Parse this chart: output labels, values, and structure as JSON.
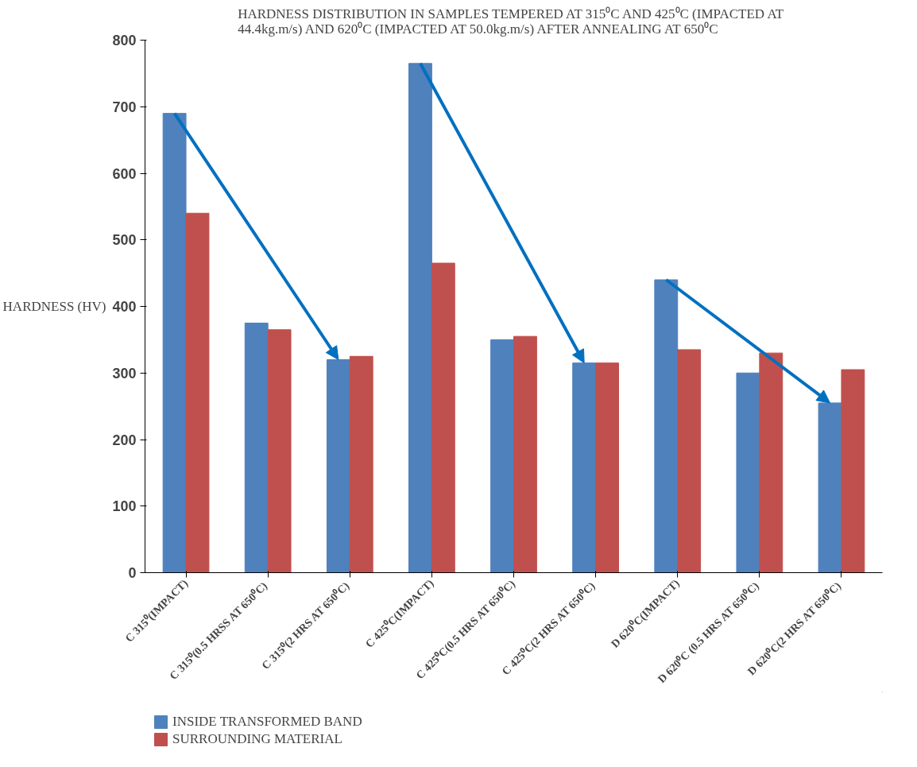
{
  "chart_data": {
    "type": "bar",
    "title": "HARDNESS DISTRIBUTION IN SAMPLES TEMPERED AT  315⁰C AND 425⁰C (IMPACTED AT 44.4kg.m/s) AND 620⁰C (IMPACTED AT 50.0kg.m/s) AFTER ANNEALING AT 650⁰C",
    "ylabel": "HARDNESS (HV)",
    "categories": [
      "C 315⁰(IMPACT)",
      "C 315⁰(0.5 HRSS  AT 650⁰C)",
      "C 315⁰(2 HRS  AT 650⁰C)",
      "C 425⁰C(IMPACT)",
      "C 425⁰C(0.5 HRS AT 650⁰C)",
      "C 425⁰C(2 HRS  AT 650⁰C)",
      "D 620⁰C(IMPACT)",
      "D 620⁰C (0.5 HRS  AT 650⁰C)",
      "D 620⁰C(2 HRS  AT 650⁰C)"
    ],
    "series": [
      {
        "name": "INSIDE TRANSFORMED BAND",
        "color": "#4f81bd",
        "values": [
          690,
          375,
          320,
          765,
          350,
          315,
          440,
          300,
          255
        ]
      },
      {
        "name": "SURROUNDING MATERIAL",
        "color": "#c0504d",
        "values": [
          540,
          365,
          325,
          465,
          355,
          315,
          335,
          330,
          305
        ]
      }
    ],
    "ylim": [
      0,
      800
    ],
    "yticks": [
      0,
      100,
      200,
      300,
      400,
      500,
      600,
      700,
      800
    ],
    "grid": false,
    "legend": "bottom left"
  }
}
